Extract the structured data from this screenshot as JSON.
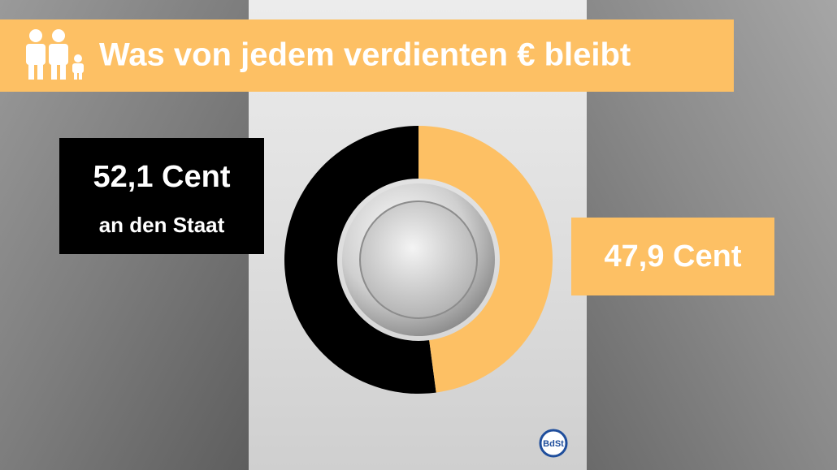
{
  "chart_data": {
    "type": "donut",
    "title": "Was von jedem verdienten € bleibt",
    "categories": [
      "an den Staat",
      null
    ],
    "values": [
      52.1,
      47.9
    ],
    "value_labels": [
      "52,1 Cent",
      "47,9 Cent"
    ],
    "colors": [
      "#000000",
      "#fdc064"
    ]
  },
  "logo": "BdSt"
}
